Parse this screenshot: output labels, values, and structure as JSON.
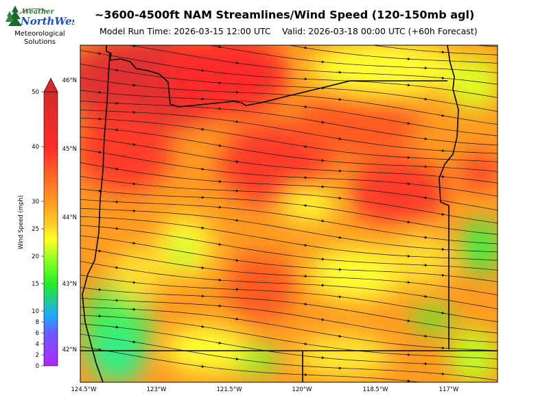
{
  "header": {
    "title": "~3600-4500ft NAM Streamlines/Wind Speed (120-150mb agl)",
    "model_run": "Model Run Time: 2026-03-15 12:00 UTC",
    "valid": "Valid: 2026-03-18 00:00 UTC  (+60h Forecast)"
  },
  "logo": {
    "brand_top": "Weather",
    "brand_main": "NorthWest",
    "subtitle_line1": "Meteorological",
    "subtitle_line2": "Solutions"
  },
  "colorbar": {
    "label": "Wind Speed (mph)",
    "ticks": [
      0,
      2,
      4,
      6,
      8,
      10,
      15,
      20,
      25,
      30,
      40,
      50
    ],
    "extend": "max",
    "colors": {
      "low": "#b026ff",
      "mid_low": "#1ea7ff",
      "mid": "#22ee22",
      "mid_high": "#ffff22",
      "high": "#ff9922",
      "top": "#d42a2a"
    }
  },
  "map": {
    "lon_ticks": [
      "124.5°W",
      "123°W",
      "121.5°W",
      "120°W",
      "118.5°W",
      "117°W"
    ],
    "lat_ticks": [
      "46°N",
      "45°N",
      "44°N",
      "43°N",
      "42°N"
    ],
    "boundary_color": "#000000",
    "streamline_color": "#111111"
  }
}
